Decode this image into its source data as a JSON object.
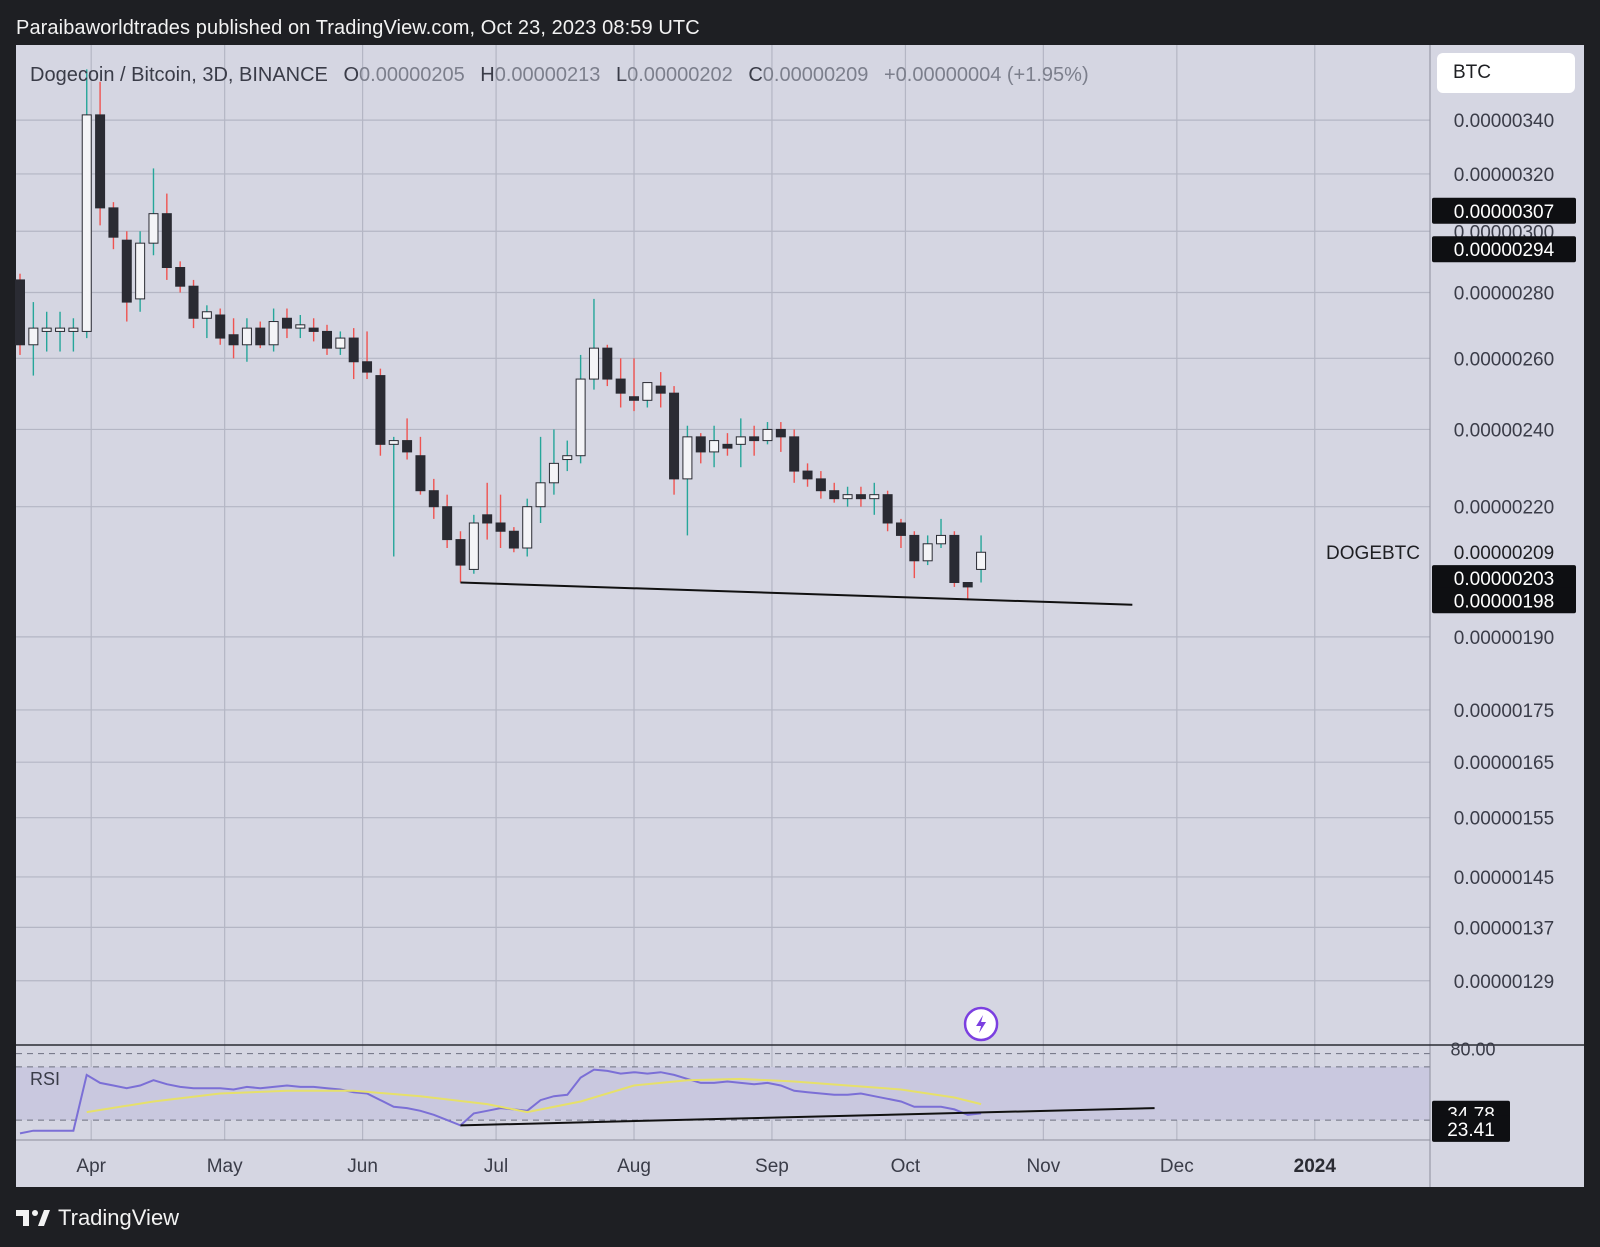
{
  "header": {
    "caption": "Paraibaworldtrades published on TradingView.com, Oct 23, 2023 08:59 UTC"
  },
  "legend": {
    "symbol": "Dogecoin / Bitcoin, 3D, BINANCE",
    "open_label": "O",
    "open": "0.00000205",
    "high_label": "H",
    "high": "0.00000213",
    "low_label": "L",
    "low": "0.00000202",
    "close_label": "C",
    "close": "0.00000209",
    "change": "+0.00000004 (+1.95%)"
  },
  "currency_button": {
    "label": "BTC"
  },
  "footer": {
    "brand": "TradingView"
  },
  "colors": {
    "background": "#d5d6e2",
    "grid": "#b4b6c4",
    "bull": "#26a69a",
    "bear": "#ef5350",
    "candle_dark": "#2a2b33",
    "candle_light": "#f4f4f7",
    "rsi_line": "#7b6fd6",
    "rsi_ma": "#e6e06a"
  },
  "chart_data": [
    {
      "type": "candlestick",
      "title": "Dogecoin / Bitcoin, 3D, BINANCE",
      "symbol_label": "DOGEBTC",
      "y_scale": "log",
      "ylim": [
        1.2e-06,
        3.7e-06
      ],
      "x_range": [
        "2023-03-16",
        "2024-01-26"
      ],
      "x_ticks": [
        {
          "label": "Apr",
          "date": "2023-04-01"
        },
        {
          "label": "May",
          "date": "2023-05-01"
        },
        {
          "label": "Jun",
          "date": "2023-06-01"
        },
        {
          "label": "Jul",
          "date": "2023-07-01"
        },
        {
          "label": "Aug",
          "date": "2023-08-01"
        },
        {
          "label": "Sep",
          "date": "2023-09-01"
        },
        {
          "label": "Oct",
          "date": "2023-10-01"
        },
        {
          "label": "Nov",
          "date": "2023-11-01"
        },
        {
          "label": "Dec",
          "date": "2023-12-01"
        },
        {
          "label": "2024",
          "date": "2024-01-01"
        }
      ],
      "y_ticks": [
        "0.00000340",
        "0.00000320",
        "0.00000300",
        "0.00000280",
        "0.00000260",
        "0.00000240",
        "0.00000220",
        "0.00000190",
        "0.00000175",
        "0.00000165",
        "0.00000155",
        "0.00000145",
        "0.00000137",
        "0.00000129"
      ],
      "price_tags": [
        {
          "label": "0.00000307",
          "value": 3.07e-06
        },
        {
          "label": "0.00000294",
          "value": 2.94e-06
        },
        {
          "label": "0.00000209",
          "value": 2.09e-06,
          "plain": true
        },
        {
          "label": "0.00000203",
          "value": 2.03e-06
        },
        {
          "label": "0.00000198",
          "value": 1.98e-06
        }
      ],
      "candles": [
        {
          "date": "2023-03-16",
          "o": 2.84,
          "h": 2.86,
          "l": 2.61,
          "c": 2.64
        },
        {
          "date": "2023-03-19",
          "o": 2.64,
          "h": 2.77,
          "l": 2.55,
          "c": 2.69
        },
        {
          "date": "2023-03-22",
          "o": 2.68,
          "h": 2.74,
          "l": 2.62,
          "c": 2.69
        },
        {
          "date": "2023-03-25",
          "o": 2.68,
          "h": 2.74,
          "l": 2.62,
          "c": 2.69
        },
        {
          "date": "2023-03-28",
          "o": 2.68,
          "h": 2.72,
          "l": 2.62,
          "c": 2.69
        },
        {
          "date": "2023-03-31",
          "o": 2.68,
          "h": 3.6,
          "l": 2.66,
          "c": 3.42
        },
        {
          "date": "2023-04-03",
          "o": 3.42,
          "h": 3.55,
          "l": 3.02,
          "c": 3.08
        },
        {
          "date": "2023-04-06",
          "o": 3.08,
          "h": 3.1,
          "l": 2.94,
          "c": 2.98
        },
        {
          "date": "2023-04-09",
          "o": 2.97,
          "h": 3.0,
          "l": 2.71,
          "c": 2.77
        },
        {
          "date": "2023-04-12",
          "o": 2.78,
          "h": 3.0,
          "l": 2.74,
          "c": 2.96
        },
        {
          "date": "2023-04-15",
          "o": 2.96,
          "h": 3.22,
          "l": 2.92,
          "c": 3.06
        },
        {
          "date": "2023-04-18",
          "o": 3.06,
          "h": 3.13,
          "l": 2.84,
          "c": 2.88
        },
        {
          "date": "2023-04-21",
          "o": 2.88,
          "h": 2.9,
          "l": 2.8,
          "c": 2.82
        },
        {
          "date": "2023-04-24",
          "o": 2.82,
          "h": 2.84,
          "l": 2.69,
          "c": 2.72
        },
        {
          "date": "2023-04-27",
          "o": 2.72,
          "h": 2.76,
          "l": 2.66,
          "c": 2.74
        },
        {
          "date": "2023-04-30",
          "o": 2.73,
          "h": 2.75,
          "l": 2.64,
          "c": 2.66
        },
        {
          "date": "2023-05-03",
          "o": 2.67,
          "h": 2.72,
          "l": 2.6,
          "c": 2.64
        },
        {
          "date": "2023-05-06",
          "o": 2.64,
          "h": 2.72,
          "l": 2.59,
          "c": 2.69
        },
        {
          "date": "2023-05-09",
          "o": 2.69,
          "h": 2.71,
          "l": 2.63,
          "c": 2.64
        },
        {
          "date": "2023-05-12",
          "o": 2.64,
          "h": 2.75,
          "l": 2.62,
          "c": 2.71
        },
        {
          "date": "2023-05-15",
          "o": 2.72,
          "h": 2.75,
          "l": 2.66,
          "c": 2.69
        },
        {
          "date": "2023-05-18",
          "o": 2.69,
          "h": 2.73,
          "l": 2.66,
          "c": 2.7
        },
        {
          "date": "2023-05-21",
          "o": 2.69,
          "h": 2.72,
          "l": 2.65,
          "c": 2.68
        },
        {
          "date": "2023-05-24",
          "o": 2.68,
          "h": 2.7,
          "l": 2.61,
          "c": 2.63
        },
        {
          "date": "2023-05-27",
          "o": 2.63,
          "h": 2.68,
          "l": 2.61,
          "c": 2.66
        },
        {
          "date": "2023-05-30",
          "o": 2.66,
          "h": 2.69,
          "l": 2.54,
          "c": 2.59
        },
        {
          "date": "2023-06-02",
          "o": 2.59,
          "h": 2.68,
          "l": 2.54,
          "c": 2.56
        },
        {
          "date": "2023-06-05",
          "o": 2.55,
          "h": 2.57,
          "l": 2.33,
          "c": 2.36
        },
        {
          "date": "2023-06-08",
          "o": 2.36,
          "h": 2.38,
          "l": 2.08,
          "c": 2.37
        },
        {
          "date": "2023-06-11",
          "o": 2.37,
          "h": 2.43,
          "l": 2.32,
          "c": 2.34
        },
        {
          "date": "2023-06-14",
          "o": 2.33,
          "h": 2.38,
          "l": 2.23,
          "c": 2.24
        },
        {
          "date": "2023-06-17",
          "o": 2.24,
          "h": 2.27,
          "l": 2.17,
          "c": 2.2
        },
        {
          "date": "2023-06-20",
          "o": 2.2,
          "h": 2.23,
          "l": 2.1,
          "c": 2.12
        },
        {
          "date": "2023-06-23",
          "o": 2.12,
          "h": 2.14,
          "l": 2.02,
          "c": 2.06
        },
        {
          "date": "2023-06-26",
          "o": 2.05,
          "h": 2.18,
          "l": 2.04,
          "c": 2.16
        },
        {
          "date": "2023-06-29",
          "o": 2.18,
          "h": 2.26,
          "l": 2.12,
          "c": 2.16
        },
        {
          "date": "2023-07-02",
          "o": 2.16,
          "h": 2.23,
          "l": 2.1,
          "c": 2.14
        },
        {
          "date": "2023-07-05",
          "o": 2.14,
          "h": 2.15,
          "l": 2.09,
          "c": 2.1
        },
        {
          "date": "2023-07-08",
          "o": 2.1,
          "h": 2.22,
          "l": 2.08,
          "c": 2.2
        },
        {
          "date": "2023-07-11",
          "o": 2.2,
          "h": 2.38,
          "l": 2.16,
          "c": 2.26
        },
        {
          "date": "2023-07-14",
          "o": 2.26,
          "h": 2.4,
          "l": 2.23,
          "c": 2.31
        },
        {
          "date": "2023-07-17",
          "o": 2.32,
          "h": 2.37,
          "l": 2.29,
          "c": 2.33
        },
        {
          "date": "2023-07-20",
          "o": 2.33,
          "h": 2.61,
          "l": 2.31,
          "c": 2.54
        },
        {
          "date": "2023-07-23",
          "o": 2.54,
          "h": 2.78,
          "l": 2.51,
          "c": 2.63
        },
        {
          "date": "2023-07-26",
          "o": 2.63,
          "h": 2.64,
          "l": 2.52,
          "c": 2.54
        },
        {
          "date": "2023-07-29",
          "o": 2.54,
          "h": 2.6,
          "l": 2.46,
          "c": 2.5
        },
        {
          "date": "2023-08-01",
          "o": 2.49,
          "h": 2.6,
          "l": 2.45,
          "c": 2.48
        },
        {
          "date": "2023-08-04",
          "o": 2.48,
          "h": 2.53,
          "l": 2.46,
          "c": 2.53
        },
        {
          "date": "2023-08-07",
          "o": 2.52,
          "h": 2.56,
          "l": 2.46,
          "c": 2.5
        },
        {
          "date": "2023-08-10",
          "o": 2.5,
          "h": 2.52,
          "l": 2.23,
          "c": 2.27
        },
        {
          "date": "2023-08-13",
          "o": 2.27,
          "h": 2.41,
          "l": 2.13,
          "c": 2.38
        },
        {
          "date": "2023-08-16",
          "o": 2.38,
          "h": 2.39,
          "l": 2.31,
          "c": 2.34
        },
        {
          "date": "2023-08-19",
          "o": 2.34,
          "h": 2.41,
          "l": 2.3,
          "c": 2.37
        },
        {
          "date": "2023-08-22",
          "o": 2.36,
          "h": 2.39,
          "l": 2.33,
          "c": 2.35
        },
        {
          "date": "2023-08-25",
          "o": 2.36,
          "h": 2.43,
          "l": 2.3,
          "c": 2.38
        },
        {
          "date": "2023-08-28",
          "o": 2.38,
          "h": 2.41,
          "l": 2.33,
          "c": 2.37
        },
        {
          "date": "2023-08-31",
          "o": 2.37,
          "h": 2.42,
          "l": 2.36,
          "c": 2.4
        },
        {
          "date": "2023-09-03",
          "o": 2.4,
          "h": 2.42,
          "l": 2.34,
          "c": 2.38
        },
        {
          "date": "2023-09-06",
          "o": 2.38,
          "h": 2.4,
          "l": 2.26,
          "c": 2.29
        },
        {
          "date": "2023-09-09",
          "o": 2.29,
          "h": 2.31,
          "l": 2.25,
          "c": 2.27
        },
        {
          "date": "2023-09-12",
          "o": 2.27,
          "h": 2.29,
          "l": 2.22,
          "c": 2.24
        },
        {
          "date": "2023-09-15",
          "o": 2.24,
          "h": 2.26,
          "l": 2.21,
          "c": 2.22
        },
        {
          "date": "2023-09-18",
          "o": 2.22,
          "h": 2.25,
          "l": 2.2,
          "c": 2.23
        },
        {
          "date": "2023-09-21",
          "o": 2.23,
          "h": 2.25,
          "l": 2.2,
          "c": 2.22
        },
        {
          "date": "2023-09-24",
          "o": 2.22,
          "h": 2.26,
          "l": 2.18,
          "c": 2.23
        },
        {
          "date": "2023-09-27",
          "o": 2.23,
          "h": 2.24,
          "l": 2.14,
          "c": 2.16
        },
        {
          "date": "2023-09-30",
          "o": 2.16,
          "h": 2.17,
          "l": 2.1,
          "c": 2.13
        },
        {
          "date": "2023-10-03",
          "o": 2.13,
          "h": 2.14,
          "l": 2.03,
          "c": 2.07
        },
        {
          "date": "2023-10-06",
          "o": 2.07,
          "h": 2.13,
          "l": 2.06,
          "c": 2.11
        },
        {
          "date": "2023-10-09",
          "o": 2.11,
          "h": 2.17,
          "l": 2.1,
          "c": 2.13
        },
        {
          "date": "2023-10-12",
          "o": 2.13,
          "h": 2.14,
          "l": 2.01,
          "c": 2.02
        },
        {
          "date": "2023-10-15",
          "o": 2.02,
          "h": 2.02,
          "l": 1.98,
          "c": 2.01
        },
        {
          "date": "2023-10-18",
          "o": 2.05,
          "h": 2.13,
          "l": 2.02,
          "c": 2.09
        }
      ],
      "support_line": {
        "from": {
          "date": "2023-06-23",
          "value": 2.02
        },
        "to": {
          "date": "2023-11-21",
          "value": 1.97
        }
      },
      "value_unit_scale": 1e-06
    },
    {
      "type": "line",
      "title": "RSI",
      "ylim": [
        15,
        85
      ],
      "levels": [
        80,
        70,
        30
      ],
      "level_labels": [
        "80.00"
      ],
      "value_tags": [
        {
          "label": "34.78",
          "value": 34.78
        },
        {
          "label": "23.41",
          "value": 23.41
        }
      ],
      "series": [
        {
          "role": "rsi",
          "dates": [
            "2023-03-16",
            "2023-03-19",
            "2023-03-22",
            "2023-03-25",
            "2023-03-28",
            "2023-03-31",
            "2023-04-03",
            "2023-04-06",
            "2023-04-09",
            "2023-04-12",
            "2023-04-15",
            "2023-04-18",
            "2023-04-21",
            "2023-04-24",
            "2023-04-27",
            "2023-04-30",
            "2023-05-03",
            "2023-05-06",
            "2023-05-09",
            "2023-05-12",
            "2023-05-15",
            "2023-05-18",
            "2023-05-21",
            "2023-05-24",
            "2023-05-27",
            "2023-05-30",
            "2023-06-02",
            "2023-06-05",
            "2023-06-08",
            "2023-06-11",
            "2023-06-14",
            "2023-06-17",
            "2023-06-20",
            "2023-06-23",
            "2023-06-26",
            "2023-06-29",
            "2023-07-02",
            "2023-07-05",
            "2023-07-08",
            "2023-07-11",
            "2023-07-14",
            "2023-07-17",
            "2023-07-20",
            "2023-07-23",
            "2023-07-26",
            "2023-07-29",
            "2023-08-01",
            "2023-08-04",
            "2023-08-07",
            "2023-08-10",
            "2023-08-13",
            "2023-08-16",
            "2023-08-19",
            "2023-08-22",
            "2023-08-25",
            "2023-08-28",
            "2023-08-31",
            "2023-09-03",
            "2023-09-06",
            "2023-09-09",
            "2023-09-12",
            "2023-09-15",
            "2023-09-18",
            "2023-09-21",
            "2023-09-24",
            "2023-09-27",
            "2023-09-30",
            "2023-10-03",
            "2023-10-06",
            "2023-10-09",
            "2023-10-12",
            "2023-10-15",
            "2023-10-18"
          ],
          "values": [
            20,
            22,
            22,
            22,
            22,
            64,
            58,
            56,
            54,
            56,
            60,
            57,
            55,
            54,
            54,
            54,
            53,
            55,
            54,
            55,
            56,
            55,
            55,
            54,
            53,
            51,
            50,
            45,
            40,
            39,
            37,
            34,
            30,
            26,
            35,
            37,
            39,
            38,
            37,
            45,
            48,
            49,
            62,
            68,
            67,
            65,
            66,
            65,
            66,
            64,
            61,
            58,
            58,
            59,
            58,
            57,
            58,
            56,
            52,
            51,
            50,
            49,
            49,
            50,
            48,
            46,
            44,
            40,
            40,
            40,
            38,
            34,
            35
          ]
        },
        {
          "role": "rsi_ma",
          "dates": [
            "2023-03-31",
            "2023-04-15",
            "2023-04-30",
            "2023-05-15",
            "2023-05-30",
            "2023-06-14",
            "2023-06-29",
            "2023-07-08",
            "2023-07-20",
            "2023-08-01",
            "2023-08-13",
            "2023-08-25",
            "2023-09-06",
            "2023-09-18",
            "2023-09-30",
            "2023-10-12",
            "2023-10-18"
          ],
          "values": [
            36,
            44,
            50,
            52,
            52,
            48,
            42,
            36,
            44,
            56,
            60,
            61,
            59,
            56,
            53,
            47,
            42
          ]
        }
      ],
      "support_line": {
        "from": {
          "date": "2023-06-23",
          "value": 26
        },
        "to": {
          "date": "2023-11-26",
          "value": 39
        }
      }
    }
  ]
}
